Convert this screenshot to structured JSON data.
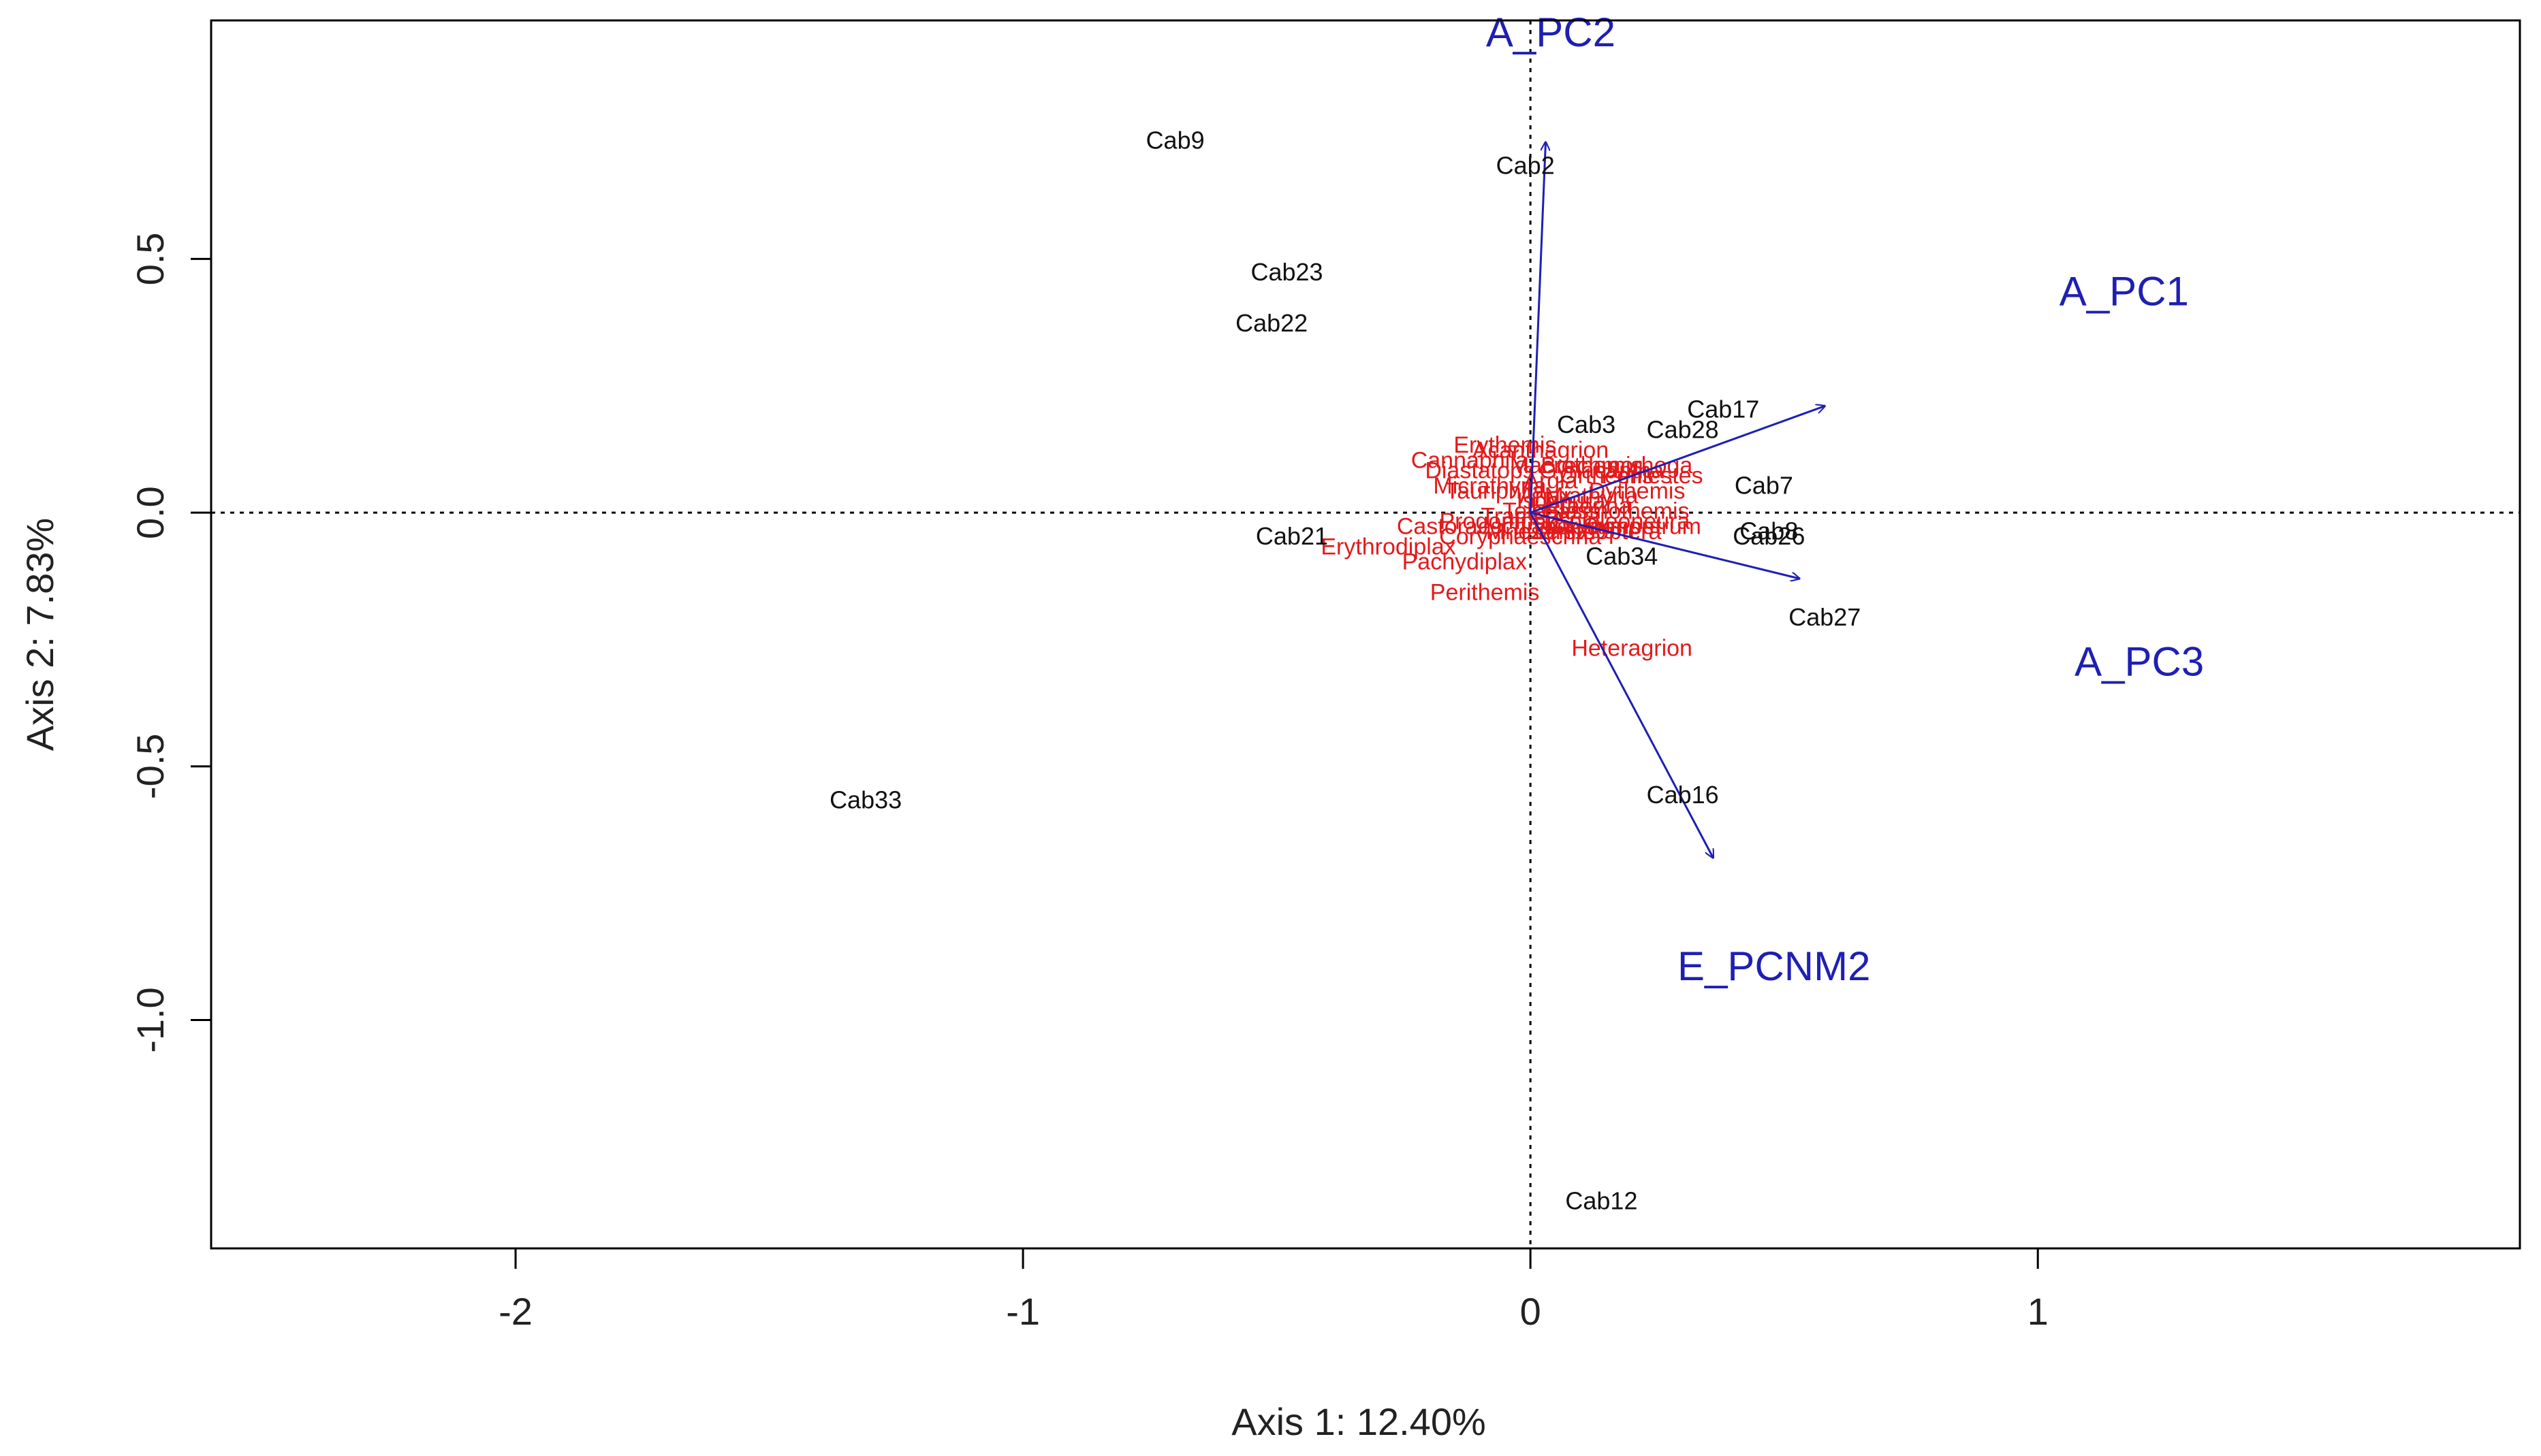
{
  "colors": {
    "sites": "#111111",
    "species": "#e31a1c",
    "vectors": "#1f1fb4",
    "axes": "#222222"
  },
  "chart_data": {
    "type": "scatter",
    "title": "",
    "xlabel": "Axis 1: 12.40%",
    "ylabel": "Axis 2: 7.83%",
    "xlim": [
      -2.6,
      1.95
    ],
    "ylim": [
      -1.45,
      0.97
    ],
    "xticks": [
      -2,
      -1,
      0,
      1
    ],
    "yticks": [
      -1.0,
      -0.5,
      0.0,
      0.5
    ],
    "ytick_labels": [
      "-1.0",
      "-0.5",
      "0.0",
      "0.5"
    ],
    "xtick_labels": [
      "-2",
      "-1",
      "0",
      "1"
    ],
    "reference_lines": {
      "x": 0,
      "y": 0,
      "style": "dotted"
    },
    "grid": false,
    "sites": [
      {
        "label": "Cab9",
        "x": -0.7,
        "y": 0.73
      },
      {
        "label": "Cab2",
        "x": -0.01,
        "y": 0.68
      },
      {
        "label": "Cab23",
        "x": -0.48,
        "y": 0.47
      },
      {
        "label": "Cab22",
        "x": -0.51,
        "y": 0.37
      },
      {
        "label": "Cab3",
        "x": 0.11,
        "y": 0.17
      },
      {
        "label": "Cab17",
        "x": 0.38,
        "y": 0.2
      },
      {
        "label": "Cab28",
        "x": 0.3,
        "y": 0.16
      },
      {
        "label": "Cab7",
        "x": 0.46,
        "y": 0.05
      },
      {
        "label": "Cab8",
        "x": 0.47,
        "y": -0.04
      },
      {
        "label": "Cab26",
        "x": 0.47,
        "y": -0.05
      },
      {
        "label": "Cab21",
        "x": -0.47,
        "y": -0.05
      },
      {
        "label": "Cab34",
        "x": 0.18,
        "y": -0.09
      },
      {
        "label": "Cab27",
        "x": 0.58,
        "y": -0.21
      },
      {
        "label": "Cab16",
        "x": 0.3,
        "y": -0.56
      },
      {
        "label": "Cab33",
        "x": -1.31,
        "y": -0.57
      },
      {
        "label": "Cab12",
        "x": 0.14,
        "y": -1.36
      }
    ],
    "species": [
      {
        "label": "Erythemis",
        "x": -0.05,
        "y": 0.13
      },
      {
        "label": "Acanthagrion",
        "x": 0.02,
        "y": 0.12
      },
      {
        "label": "Cannaphila",
        "x": -0.12,
        "y": 0.1
      },
      {
        "label": "Diastatops",
        "x": -0.1,
        "y": 0.08
      },
      {
        "label": "Macrothemis",
        "x": 0.09,
        "y": 0.09
      },
      {
        "label": "Gynacantha",
        "x": 0.14,
        "y": 0.08
      },
      {
        "label": "Argia",
        "x": 0.04,
        "y": 0.06
      },
      {
        "label": "Orthemis",
        "x": 0.15,
        "y": 0.07
      },
      {
        "label": "Micrathyria",
        "x": -0.08,
        "y": 0.05
      },
      {
        "label": "Tauriphila",
        "x": -0.07,
        "y": 0.04
      },
      {
        "label": "Dythemis",
        "x": 0.21,
        "y": 0.04
      },
      {
        "label": "Brechmorhoga",
        "x": 0.17,
        "y": 0.09
      },
      {
        "label": "Anax",
        "x": 0.03,
        "y": 0.03
      },
      {
        "label": "Miathyria",
        "x": 0.12,
        "y": 0.03
      },
      {
        "label": "Ischnura",
        "x": 0.06,
        "y": 0.02
      },
      {
        "label": "Hetaerina",
        "x": 0.1,
        "y": 0.01
      },
      {
        "label": "Telebasis",
        "x": 0.04,
        "y": 0.0
      },
      {
        "label": "Oxyagrion",
        "x": 0.14,
        "y": -0.03
      },
      {
        "label": "Tramea",
        "x": -0.02,
        "y": -0.01
      },
      {
        "label": "Elasmothemis",
        "x": 0.17,
        "y": 0.0
      },
      {
        "label": "Progomphus",
        "x": -0.05,
        "y": -0.02
      },
      {
        "label": "Tholymis",
        "x": 0.09,
        "y": -0.03
      },
      {
        "label": "Mnesarete",
        "x": 0.02,
        "y": -0.04
      },
      {
        "label": "Zenithoptera",
        "x": 0.13,
        "y": -0.04
      },
      {
        "label": "Castoraeschna",
        "x": -0.11,
        "y": -0.03
      },
      {
        "label": "Perilestes",
        "x": 0.24,
        "y": 0.07
      },
      {
        "label": "Epipleoneura",
        "x": 0.18,
        "y": -0.02
      },
      {
        "label": "Sympetrum",
        "x": 0.22,
        "y": -0.03
      },
      {
        "label": "Coryphaeschna",
        "x": -0.02,
        "y": -0.05
      },
      {
        "label": "Erythrodiplax",
        "x": -0.28,
        "y": -0.07
      },
      {
        "label": "Pachydiplax",
        "x": -0.13,
        "y": -0.1
      },
      {
        "label": "Perithemis",
        "x": -0.09,
        "y": -0.16
      },
      {
        "label": "Heteragrion",
        "x": 0.2,
        "y": -0.27
      }
    ],
    "vectors": [
      {
        "label": "A_PC2",
        "x": 0.03,
        "y": 0.73,
        "label_x": 0.04,
        "label_y": 0.94
      },
      {
        "label": "A_PC1",
        "x": 0.58,
        "y": 0.21,
        "label_x": 1.17,
        "label_y": 0.43
      },
      {
        "label": "A_PC3",
        "x": 0.53,
        "y": -0.13,
        "label_x": 1.2,
        "label_y": -0.3
      },
      {
        "label": "E_PCNM2",
        "x": 0.36,
        "y": -0.68,
        "label_x": 0.48,
        "label_y": -0.9
      }
    ]
  }
}
